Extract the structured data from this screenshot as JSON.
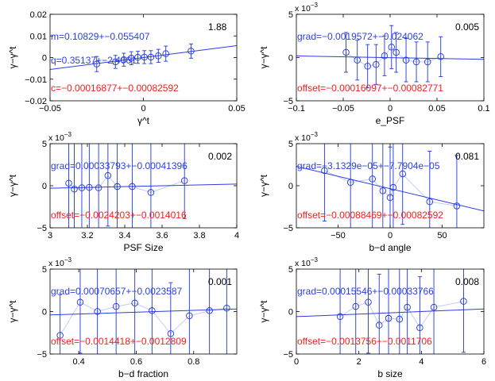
{
  "colors": {
    "axis": "#000000",
    "data": "#1f35e0",
    "fit": "#2a3fe6",
    "connector": "#c5ccf7",
    "grad": "#2a3fe6",
    "offset": "#ff1a1a",
    "stat": "#000000"
  },
  "chart_data": [
    {
      "type": "scatter",
      "xlabel": "γ^t",
      "ylabel": "γ−γ^t",
      "xlim": [
        -0.05,
        0.05
      ],
      "ylim": [
        -0.02,
        0.02
      ],
      "xticks": [
        -0.05,
        0,
        0.05
      ],
      "xtick_labels": [
        "−0.05",
        "0",
        "0.05"
      ],
      "yticks": [
        -0.02,
        -0.01,
        0,
        0.01,
        0.02
      ],
      "ytick_labels": [
        "−0.02",
        "−0.01",
        "0",
        "0.01",
        "0.02"
      ],
      "exponent_label": "",
      "x": [
        -0.025,
        -0.015,
        -0.0105,
        -0.0065,
        -0.003,
        0.0005,
        0.004,
        0.008,
        0.012,
        0.0255
      ],
      "y": [
        -0.003,
        -0.002,
        -0.001,
        -0.0003,
        0.0001,
        0.0002,
        0.0002,
        0.0008,
        0.0018,
        0.003
      ],
      "err": [
        0.0035,
        0.003,
        0.003,
        0.003,
        0.0028,
        0.003,
        0.003,
        0.003,
        0.0035,
        0.0033
      ],
      "fit_line": [
        [
          -0.05,
          -0.0055
        ],
        [
          0.05,
          0.0055
        ]
      ],
      "connect": false,
      "stat": "1.88",
      "labels": {
        "grad": "m=0.10829+−0.055407",
        "q": "q=0.35137+−2.4061",
        "offset": "c=−0.00016877+−0.00082592"
      }
    },
    {
      "type": "scatter",
      "xlabel": "e_PSF",
      "ylabel": "γ−γ^t",
      "xlim": [
        -0.1,
        0.1
      ],
      "ylim": [
        -5,
        5
      ],
      "xticks": [
        -0.1,
        -0.05,
        0,
        0.05,
        0.1
      ],
      "xtick_labels": [
        "−0.1",
        "−0.05",
        "0",
        "0.05",
        "0.1"
      ],
      "yticks": [
        -5,
        0,
        5
      ],
      "ytick_labels": [
        "−5",
        "0",
        "5"
      ],
      "exponent_label": "x 10",
      "exponent_power": "−3",
      "x": [
        -0.047,
        -0.035,
        -0.024,
        -0.015,
        -0.006,
        0.0015,
        0.0065,
        0.017,
        0.028,
        0.04,
        0.054
      ],
      "y": [
        0.6,
        -0.3,
        -1.0,
        -0.8,
        0.2,
        1.2,
        0.6,
        -0.3,
        -0.5,
        -0.5,
        0.1
      ],
      "err": [
        2.3,
        2.3,
        2.5,
        2.3,
        2.3,
        2.5,
        2.3,
        2.5,
        2.3,
        2.3,
        2.3
      ],
      "fit_line": [
        [
          -0.1,
          0.19
        ],
        [
          0.1,
          -0.21
        ]
      ],
      "connect": true,
      "stat": "0.005",
      "labels": {
        "grad": "grad=−0.0019572+−0.024062",
        "offset": "offset=−0.00016097+−0.00082771"
      }
    },
    {
      "type": "scatter",
      "xlabel": "PSF Size",
      "ylabel": "γ−γ^t",
      "xlim": [
        3,
        4
      ],
      "ylim": [
        -5,
        5
      ],
      "xticks": [
        3,
        3.2,
        3.4,
        3.6,
        3.8,
        4
      ],
      "xtick_labels": [
        "3",
        "3.2",
        "3.4",
        "3.6",
        "3.8",
        "4"
      ],
      "yticks": [
        -5,
        0,
        5
      ],
      "ytick_labels": [
        "−5",
        "0",
        "5"
      ],
      "exponent_label": "x 10",
      "exponent_power": "−3",
      "x": [
        3.1,
        3.13,
        3.17,
        3.21,
        3.26,
        3.31,
        3.36,
        3.44,
        3.54,
        3.72
      ],
      "y": [
        0.3,
        -0.4,
        -0.25,
        -0.2,
        -0.25,
        1.2,
        -0.1,
        -0.1,
        -0.8,
        0.6
      ],
      "err": [
        6,
        6,
        6,
        6,
        6,
        6,
        6,
        6,
        6,
        4.5
      ],
      "fit_line": [
        [
          3,
          -0.3
        ],
        [
          4,
          0.2
        ]
      ],
      "connect": true,
      "stat": "0.002",
      "labels": {
        "grad": "grad=0.00033793+−0.00041396",
        "offset": "offset=−0.0024203+−0.0014016"
      }
    },
    {
      "type": "scatter",
      "xlabel": "b−d angle",
      "ylabel": "γ−γ^t",
      "xlim": [
        -90,
        90
      ],
      "ylim": [
        -5,
        5
      ],
      "xticks": [
        -50,
        0,
        50
      ],
      "xtick_labels": [
        "−50",
        "0",
        "50"
      ],
      "yticks": [
        -5,
        0,
        5
      ],
      "ytick_labels": [
        "−5",
        "0",
        "5"
      ],
      "exponent_label": "x 10",
      "exponent_power": "−3",
      "x": [
        -63,
        -38,
        -17,
        -7,
        0,
        3,
        12,
        38,
        64
      ],
      "y": [
        1.8,
        0.4,
        0.8,
        -0.6,
        -1.4,
        -0.2,
        1.4,
        -1.9,
        -2.4
      ],
      "err": [
        6,
        6,
        6,
        6,
        6,
        6,
        6,
        6,
        6
      ],
      "fit_line": [
        [
          -90,
          2.3
        ],
        [
          90,
          -3.0
        ]
      ],
      "connect": true,
      "stat": "0.081",
      "labels": {
        "grad": "grad=−3.1329e−05+−7.7904e−05",
        "offset": "offset=−0.00088469+−0.00082592"
      }
    },
    {
      "type": "scatter",
      "xlabel": "b−d fraction",
      "ylabel": "γ−γ^t",
      "xlim": [
        0.3,
        0.95
      ],
      "ylim": [
        -5,
        5
      ],
      "xticks": [
        0.4,
        0.6,
        0.8
      ],
      "xtick_labels": [
        "0.4",
        "0.6",
        "0.8"
      ],
      "yticks": [
        -5,
        0,
        5
      ],
      "ytick_labels": [
        "−5",
        "0",
        "5"
      ],
      "exponent_label": "x 10",
      "exponent_power": "−3",
      "x": [
        0.335,
        0.405,
        0.465,
        0.53,
        0.595,
        0.655,
        0.72,
        0.785,
        0.855,
        0.915
      ],
      "y": [
        -2.8,
        1.1,
        0.0,
        0.6,
        1.0,
        0.1,
        -2.6,
        -0.5,
        0.1,
        0.4
      ],
      "err": [
        4.8,
        6,
        6,
        6,
        6,
        6,
        6,
        6,
        6,
        6
      ],
      "fit_line": [
        [
          0.3,
          -0.4
        ],
        [
          0.95,
          0.3
        ]
      ],
      "connect": true,
      "stat": "0.001",
      "labels": {
        "grad": "grad=0.00070657+−0.0023587",
        "offset": "offset=−0.0014418+−0.0012809"
      }
    },
    {
      "type": "scatter",
      "xlabel": "b size",
      "ylabel": "γ−γ^t",
      "xlim": [
        0,
        6
      ],
      "ylim": [
        -5,
        5
      ],
      "xticks": [
        0,
        2,
        4,
        6
      ],
      "xtick_labels": [
        "0",
        "2",
        "4",
        "6"
      ],
      "yticks": [
        -5,
        0,
        5
      ],
      "ytick_labels": [
        "−5",
        "0",
        "5"
      ],
      "exponent_label": "x 10",
      "exponent_power": "−3",
      "x": [
        1.4,
        1.9,
        2.3,
        2.65,
        2.95,
        3.3,
        3.55,
        3.95,
        4.4,
        5.35
      ],
      "y": [
        -0.6,
        0.6,
        1.1,
        -1.6,
        -0.8,
        -0.9,
        0.5,
        -1.9,
        0.5,
        1.2
      ],
      "err": [
        6,
        6,
        6,
        6,
        6,
        6,
        6,
        6,
        6,
        6
      ],
      "fit_line": [
        [
          0,
          -0.6
        ],
        [
          6,
          0.3
        ]
      ],
      "connect": true,
      "stat": "0.008",
      "labels": {
        "grad": "grad=0.00015546+−0.00033766",
        "offset": "offset=−0.0013756+−0.0011706"
      }
    }
  ]
}
